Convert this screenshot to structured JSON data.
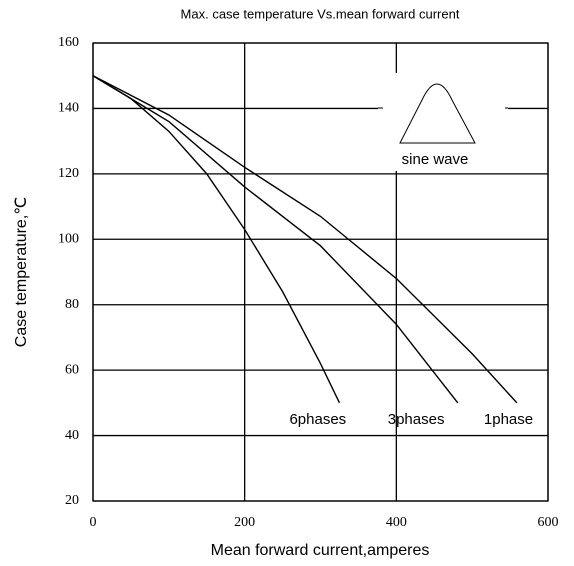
{
  "chart_data": {
    "type": "line",
    "title": "Max. case temperature  Vs.mean  forward  current",
    "xlabel": "Mean forward  current,amperes",
    "ylabel": "Case temperature,℃",
    "annotations": [
      "sine  wave"
    ],
    "xlim": [
      0,
      600
    ],
    "xticks": [
      0,
      200,
      400,
      600
    ],
    "ylim": [
      20,
      160
    ],
    "yticks": [
      20,
      40,
      60,
      80,
      100,
      120,
      140,
      160
    ],
    "grid": true,
    "series": [
      {
        "name": "6phases",
        "color": "#000000",
        "x": [
          0,
          50,
          100,
          150,
          200,
          250,
          300,
          325
        ],
        "values": [
          150,
          143,
          133,
          120,
          103,
          84,
          62,
          50
        ]
      },
      {
        "name": "3phases",
        "color": "#000000",
        "x": [
          0,
          100,
          200,
          300,
          400,
          481
        ],
        "values": [
          150,
          136,
          116,
          98,
          74,
          50
        ]
      },
      {
        "name": "1phase",
        "color": "#000000",
        "x": [
          0,
          100,
          200,
          300,
          400,
          500,
          559
        ],
        "values": [
          150,
          138,
          122,
          107,
          88,
          65,
          50
        ]
      }
    ]
  }
}
